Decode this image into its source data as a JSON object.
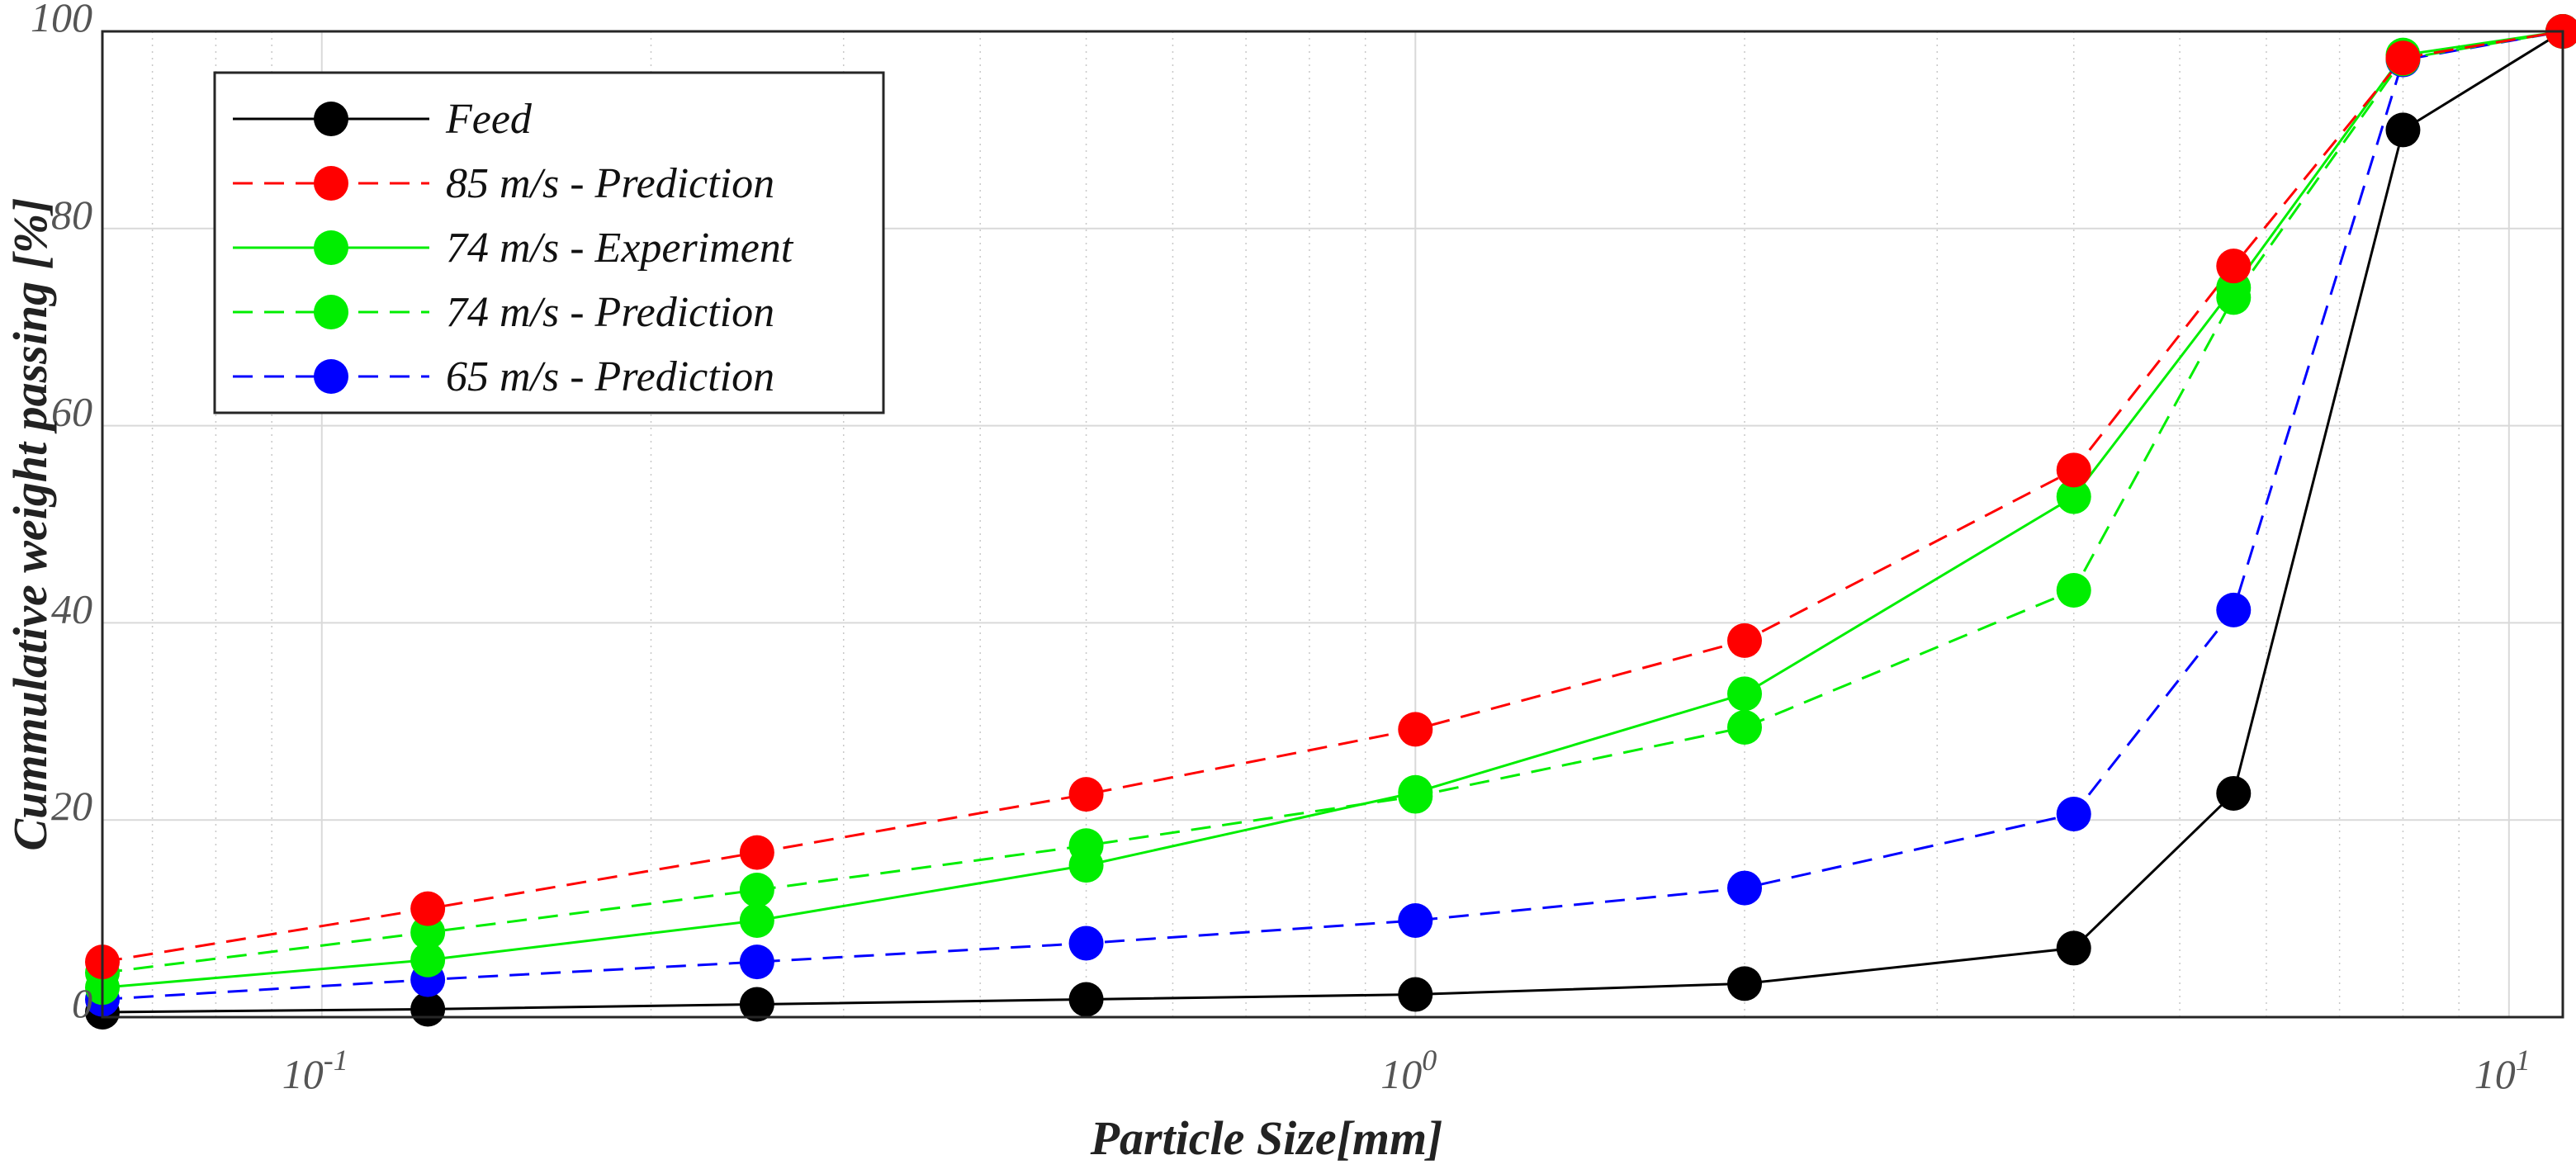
{
  "chart_data": {
    "type": "line",
    "x_scale": "log",
    "xlim": [
      0.063,
      11.2
    ],
    "ylim": [
      0,
      100
    ],
    "grid": true,
    "xlabel": "Particle Size[mm]",
    "ylabel": "Cummulative weight passing [%]",
    "legend_position": "top-left",
    "x": [
      0.063,
      0.125,
      0.25,
      0.5,
      1,
      2,
      4,
      5.6,
      8,
      11.2
    ],
    "y_ticks": [
      0,
      20,
      40,
      60,
      80,
      100
    ],
    "y_tick_labels": [
      "0",
      "20",
      "40",
      "60",
      "80",
      "100"
    ],
    "x_ticks": [
      0.1,
      1,
      10
    ],
    "x_tick_bases": [
      "10",
      "10",
      "10"
    ],
    "x_tick_exponents": [
      "-1",
      "0",
      "1"
    ],
    "series": [
      {
        "name": "Feed",
        "color": "#000000",
        "dash": "solid",
        "values": [
          0.5,
          0.8,
          1.3,
          1.8,
          2.3,
          3.4,
          7,
          22.7,
          90,
          100
        ]
      },
      {
        "name": "85 m/s - Prediction",
        "color": "#ff0000",
        "dash": "dashed",
        "values": [
          5.6,
          11,
          16.7,
          22.6,
          29.2,
          38.2,
          55.5,
          76.2,
          97.3,
          100
        ]
      },
      {
        "name": "74 m/s - Experiment",
        "color": "#00ee00",
        "dash": "solid",
        "values": [
          3,
          5.8,
          9.8,
          15.4,
          22.8,
          32.8,
          52.8,
          74,
          97.6,
          100
        ]
      },
      {
        "name": "74 m/s - Prediction",
        "color": "#00ee00",
        "dash": "dashed",
        "values": [
          4.5,
          8.6,
          12.9,
          17.4,
          22.4,
          29.4,
          43.3,
          73,
          97.2,
          100
        ]
      },
      {
        "name": "65 m/s - Prediction",
        "color": "#0000ff",
        "dash": "dashed",
        "values": [
          1.8,
          3.8,
          5.6,
          7.5,
          9.8,
          13.1,
          20.6,
          41.3,
          97.1,
          100
        ]
      }
    ]
  }
}
